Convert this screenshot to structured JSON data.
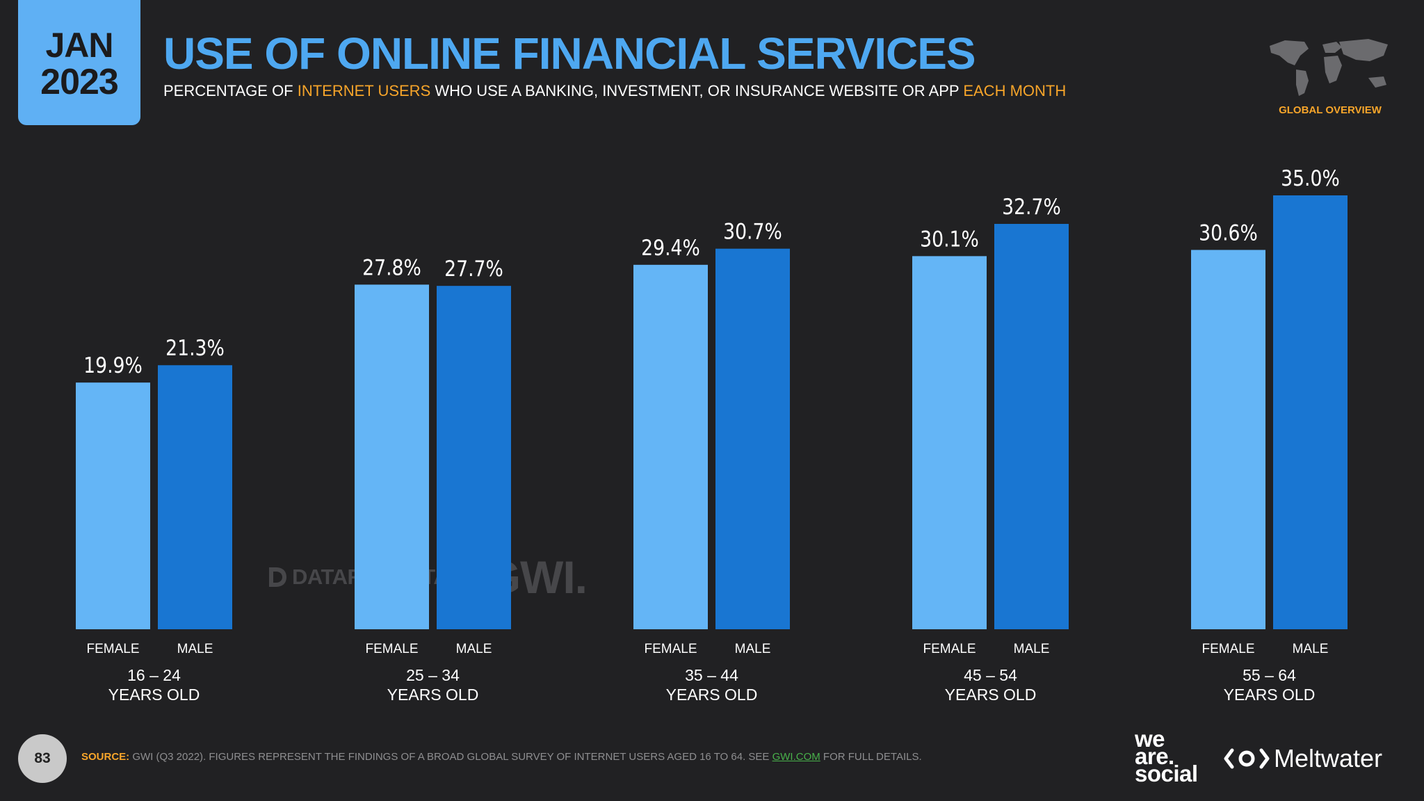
{
  "header": {
    "date_month": "JAN",
    "date_year": "2023",
    "title": "USE OF ONLINE FINANCIAL SERVICES",
    "subtitle_parts": [
      "PERCENTAGE OF ",
      "INTERNET USERS",
      " WHO USE A BANKING, INVESTMENT, OR INSURANCE WEBSITE OR APP ",
      "EACH MONTH"
    ],
    "overview_label": "GLOBAL OVERVIEW"
  },
  "chart_data": {
    "type": "bar",
    "categories": [
      "16 – 24",
      "25 – 34",
      "35 – 44",
      "45 – 54",
      "55 – 64"
    ],
    "category_sublabel": "YEARS OLD",
    "series": [
      {
        "name": "FEMALE",
        "values": [
          19.9,
          27.8,
          29.4,
          30.1,
          30.6
        ],
        "color": "#64b5f6"
      },
      {
        "name": "MALE",
        "values": [
          21.3,
          27.7,
          30.7,
          32.7,
          35.0
        ],
        "color": "#1976d2"
      }
    ],
    "value_suffix": "%",
    "ylim": [
      0,
      35
    ]
  },
  "watermark": {
    "left": "DATAREPORTAL",
    "right": "GWI."
  },
  "footer": {
    "page_number": "83",
    "source_label": "SOURCE:",
    "source_text": " GWI (Q3 2022). FIGURES REPRESENT THE FINDINGS OF A BROAD GLOBAL SURVEY OF INTERNET USERS AGED 16 TO 64. SEE ",
    "source_link": "GWI.COM",
    "source_tail": " FOR FULL DETAILS.",
    "logo_was": [
      "we",
      "are.",
      "social"
    ],
    "logo_meltwater": "Meltwater"
  },
  "colors": {
    "accent": "#4ea8f1",
    "highlight": "#f7a52a",
    "background": "#212123"
  }
}
